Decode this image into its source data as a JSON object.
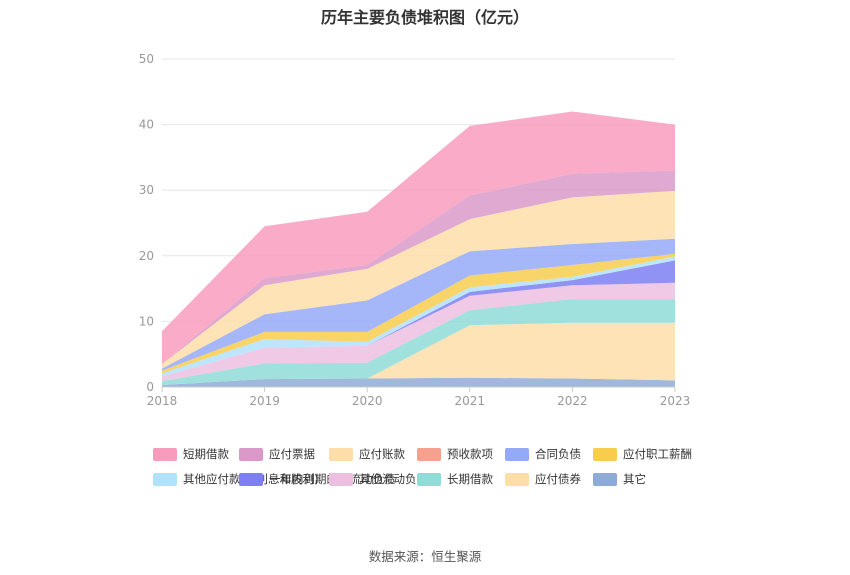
{
  "title": "历年主要负债堆积图（亿元）",
  "source": "数据来源：恒生聚源",
  "chart_data": {
    "type": "area",
    "stacked": true,
    "title": "历年主要负债堆积图（亿元）",
    "categories": [
      "2018",
      "2019",
      "2020",
      "2021",
      "2022",
      "2023"
    ],
    "ylim": [
      0,
      50
    ],
    "yticks": [
      "0",
      "10",
      "20",
      "30",
      "40",
      "50"
    ],
    "grid": true,
    "legend_position": "bottom",
    "series": [
      {
        "name": "其它",
        "color": "#8eabd6",
        "values": [
          0.3,
          1.2,
          1.3,
          1.4,
          1.3,
          1.0
        ]
      },
      {
        "name": "应付债券",
        "color": "#fddea8",
        "values": [
          0,
          0,
          0,
          8.0,
          8.5,
          8.8
        ]
      },
      {
        "name": "长期借款",
        "color": "#8fdcd8",
        "values": [
          0.6,
          2.4,
          2.4,
          2.3,
          3.6,
          3.6
        ]
      },
      {
        "name": "其他流动负债",
        "color": "#ecbfe0",
        "values": [
          0.7,
          2.4,
          2.6,
          2.2,
          2.1,
          2.5
        ]
      },
      {
        "name": "一年内到期的非流动负债",
        "color": "#7d7ff2",
        "values": [
          0,
          0,
          0,
          0.6,
          0.8,
          3.4
        ]
      },
      {
        "name": "其他应付款(含利息和股利)",
        "color": "#b2e1fb",
        "values": [
          0.5,
          1.3,
          0.6,
          0.7,
          0.5,
          0.6
        ]
      },
      {
        "name": "应付职工薪酬",
        "color": "#f8cd4e",
        "values": [
          0.4,
          1.1,
          1.5,
          1.8,
          1.8,
          0.4
        ]
      },
      {
        "name": "合同负债",
        "color": "#95aaf7",
        "values": [
          0.3,
          2.7,
          4.8,
          3.7,
          3.2,
          2.3
        ]
      },
      {
        "name": "预收款项",
        "color": "#f6a08f",
        "values": [
          0,
          0,
          0,
          0,
          0,
          0
        ]
      },
      {
        "name": "应付账款",
        "color": "#fddea8",
        "values": [
          0.7,
          4.4,
          4.8,
          4.9,
          7.1,
          7.3
        ]
      },
      {
        "name": "应付票据",
        "color": "#d99ac9",
        "values": [
          0,
          1.1,
          0.6,
          3.6,
          3.6,
          3.1
        ]
      },
      {
        "name": "短期借款",
        "color": "#f89cbd",
        "values": [
          5.0,
          7.9,
          8.1,
          10.6,
          9.5,
          7.0
        ]
      }
    ],
    "legend_order": [
      "短期借款",
      "应付票据",
      "应付账款",
      "预收款项",
      "合同负债",
      "应付职工薪酬",
      "其他应付款(含利息和股利)",
      "一年内到期的非流动负债",
      "其他流动负债",
      "长期借款",
      "应付债券",
      "其它"
    ]
  }
}
